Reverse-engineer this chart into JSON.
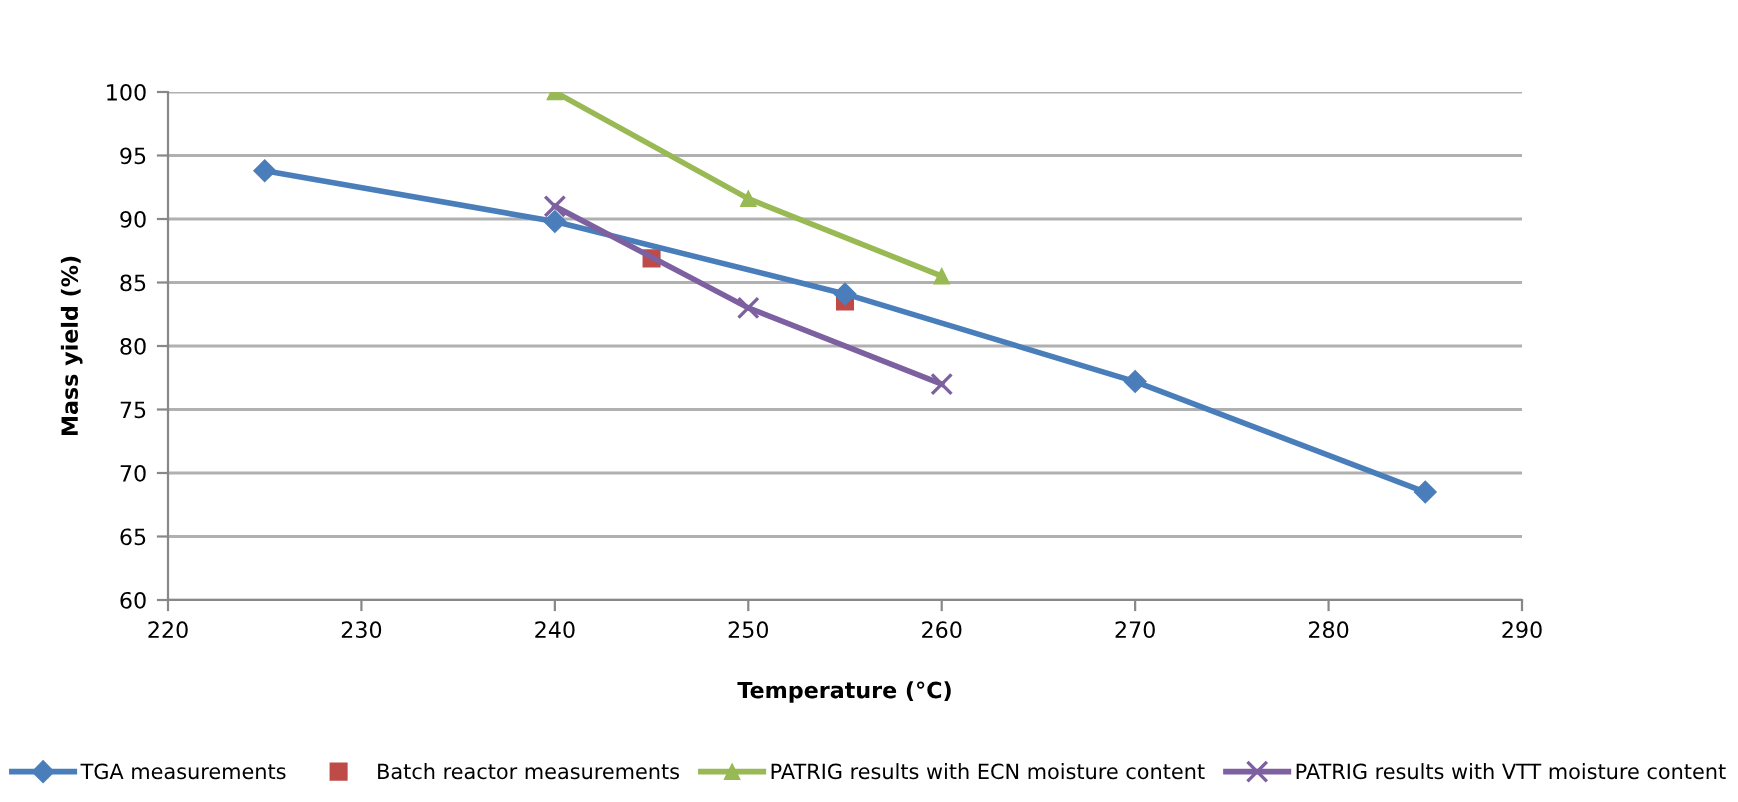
{
  "chart_data": {
    "type": "line",
    "xlabel": "Temperature (°C)",
    "ylabel": "Mass yield (%)",
    "xlim": [
      220,
      290
    ],
    "xticks": [
      220,
      230,
      240,
      250,
      260,
      270,
      280,
      290
    ],
    "ylim": [
      60,
      100
    ],
    "yticks": [
      60,
      65,
      70,
      75,
      80,
      85,
      90,
      95,
      100
    ],
    "grid": "y",
    "legend": "bottom",
    "series": [
      {
        "name": "TGA measurements",
        "color": "#4a7ebb",
        "marker": "diamond",
        "x": [
          225,
          240,
          255,
          270,
          285
        ],
        "values": [
          93.8,
          89.8,
          84.1,
          77.2,
          68.5
        ]
      },
      {
        "name": "Batch reactor measurements",
        "type": "scatter",
        "color": "#be4b48",
        "marker": "square",
        "x": [
          245,
          255
        ],
        "values": [
          86.9,
          83.5
        ]
      },
      {
        "name": "PATRIG results with ECN moisture content",
        "color": "#98b954",
        "marker": "triangle",
        "x": [
          240,
          250,
          260
        ],
        "values": [
          100,
          91.6,
          85.5
        ]
      },
      {
        "name": "PATRIG results with VTT moisture content",
        "color": "#7d60a0",
        "marker": "cross",
        "x": [
          240,
          250,
          260
        ],
        "values": [
          91,
          83,
          77
        ]
      }
    ]
  }
}
